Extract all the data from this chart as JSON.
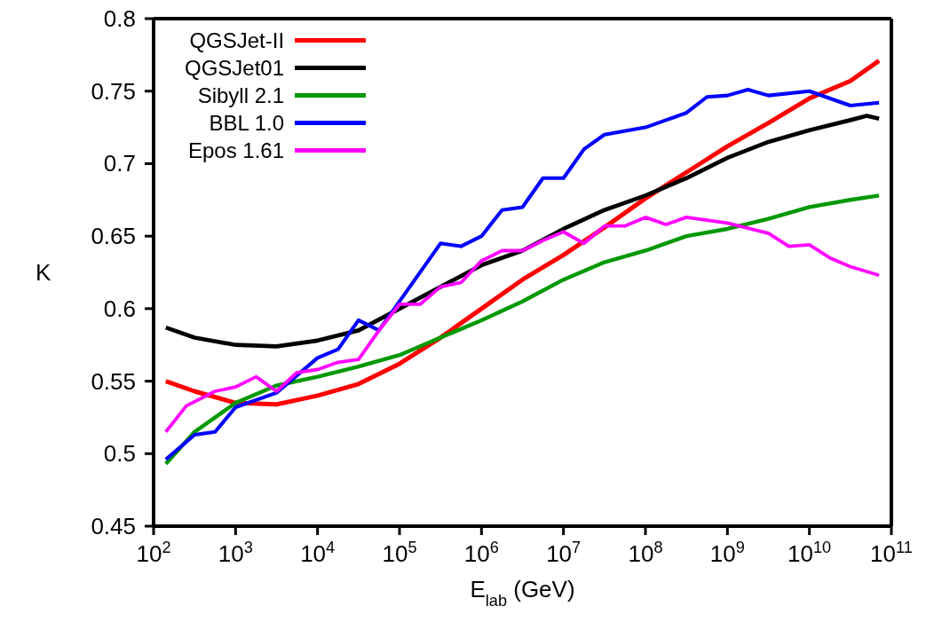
{
  "chart_data": {
    "type": "line",
    "xlabel": "E$_{lab}$ (GeV)",
    "ylabel": "K",
    "log": "x",
    "legend": "top left",
    "xlim": [
      100.0,
      100000000000.0
    ],
    "xticks": [
      {
        "value": 100.0,
        "label": "10$^{2}$"
      },
      {
        "value": 1000.0,
        "label": "10$^{3}$"
      },
      {
        "value": 10000.0,
        "label": "10$^{4}$"
      },
      {
        "value": 100000.0,
        "label": "10$^{5}$"
      },
      {
        "value": 1000000.0,
        "label": "10$^{6}$"
      },
      {
        "value": 10000000.0,
        "label": "10$^{7}$"
      },
      {
        "value": 100000000.0,
        "label": "10$^{8}$"
      },
      {
        "value": 1000000000.0,
        "label": "10$^{9}$"
      },
      {
        "value": 10000000000.0,
        "label": "10$^{10}$"
      },
      {
        "value": 100000000000.0,
        "label": "10$^{11}$"
      }
    ],
    "ylim": [
      0.45,
      0.8
    ],
    "yticks": [
      0.45,
      0.5,
      0.55,
      0.6,
      0.65,
      0.7,
      0.75,
      0.8
    ],
    "series": [
      {
        "name": "QGSJet-II",
        "color": "#ff0000",
        "x": [
          141.0,
          316.0,
          1000.0,
          3160.0,
          10000.0,
          31600.0,
          100000.0,
          316000.0,
          1000000.0,
          3160000.0,
          10000000.0,
          31600000.0,
          100000000.0,
          316000000.0,
          1000000000.0,
          3160000000.0,
          10000000000.0,
          31600000000.0,
          70800000000.0
        ],
        "values": [
          0.55,
          0.543,
          0.535,
          0.534,
          0.54,
          0.548,
          0.562,
          0.58,
          0.6,
          0.62,
          0.637,
          0.656,
          0.676,
          0.694,
          0.712,
          0.728,
          0.745,
          0.757,
          0.771
        ]
      },
      {
        "name": "QGSJet01",
        "color": "#000000",
        "x": [
          141.0,
          316.0,
          1000.0,
          3160.0,
          10000.0,
          31600.0,
          100000.0,
          316000.0,
          1000000.0,
          3160000.0,
          10000000.0,
          31600000.0,
          100000000.0,
          316000000.0,
          1000000000.0,
          3160000000.0,
          10000000000.0,
          31600000000.0,
          50100000000.0,
          70800000000.0
        ],
        "values": [
          0.587,
          0.58,
          0.575,
          0.574,
          0.578,
          0.585,
          0.6,
          0.615,
          0.63,
          0.64,
          0.655,
          0.668,
          0.678,
          0.69,
          0.704,
          0.715,
          0.723,
          0.73,
          0.733,
          0.731
        ]
      },
      {
        "name": "Sibyll 2.1",
        "color": "#009900",
        "x": [
          141.0,
          316.0,
          1000.0,
          3160.0,
          10000.0,
          31600.0,
          100000.0,
          316000.0,
          1000000.0,
          3160000.0,
          10000000.0,
          31600000.0,
          100000000.0,
          316000000.0,
          1000000000.0,
          3160000000.0,
          10000000000.0,
          31600000000.0,
          70800000000.0
        ],
        "values": [
          0.493,
          0.515,
          0.535,
          0.547,
          0.553,
          0.56,
          0.568,
          0.58,
          0.592,
          0.605,
          0.62,
          0.632,
          0.64,
          0.65,
          0.655,
          0.662,
          0.67,
          0.675,
          0.678
        ]
      },
      {
        "name": "BBL 1.0",
        "color": "#0000ff",
        "x": [
          141.0,
          316.0,
          562.0,
          1000.0,
          3160.0,
          10000.0,
          17800.0,
          31600.0,
          56200.0,
          100000.0,
          316000.0,
          562000.0,
          1000000.0,
          1780000.0,
          3160000.0,
          5620000.0,
          10000000.0,
          17800000.0,
          31600000.0,
          100000000.0,
          178000000.0,
          316000000.0,
          562000000.0,
          1000000000.0,
          1780000000.0,
          3160000000.0,
          10000000000.0,
          31600000000.0,
          70800000000.0
        ],
        "values": [
          0.496,
          0.513,
          0.515,
          0.532,
          0.542,
          0.566,
          0.572,
          0.592,
          0.585,
          0.605,
          0.645,
          0.643,
          0.65,
          0.668,
          0.67,
          0.69,
          0.69,
          0.71,
          0.72,
          0.725,
          0.73,
          0.735,
          0.746,
          0.747,
          0.751,
          0.747,
          0.75,
          0.74,
          0.742
        ]
      },
      {
        "name": "Epos 1.61",
        "color": "#ff00ff",
        "x": [
          141.0,
          251.0,
          562.0,
          1000.0,
          1780.0,
          3160.0,
          5620.0,
          10000.0,
          17800.0,
          31600.0,
          56200.0,
          100000.0,
          178000.0,
          316000.0,
          562000.0,
          1000000.0,
          1780000.0,
          3160000.0,
          5620000.0,
          10000000.0,
          17800000.0,
          31600000.0,
          56200000.0,
          100000000.0,
          178000000.0,
          316000000.0,
          1000000000.0,
          3160000000.0,
          5620000000.0,
          10000000000.0,
          17800000000.0,
          31600000000.0,
          70800000000.0
        ],
        "values": [
          0.515,
          0.533,
          0.543,
          0.546,
          0.553,
          0.543,
          0.556,
          0.558,
          0.563,
          0.565,
          0.585,
          0.603,
          0.603,
          0.615,
          0.618,
          0.633,
          0.64,
          0.64,
          0.647,
          0.653,
          0.645,
          0.657,
          0.657,
          0.663,
          0.658,
          0.663,
          0.659,
          0.652,
          0.643,
          0.644,
          0.635,
          0.629,
          0.623
        ]
      }
    ]
  }
}
